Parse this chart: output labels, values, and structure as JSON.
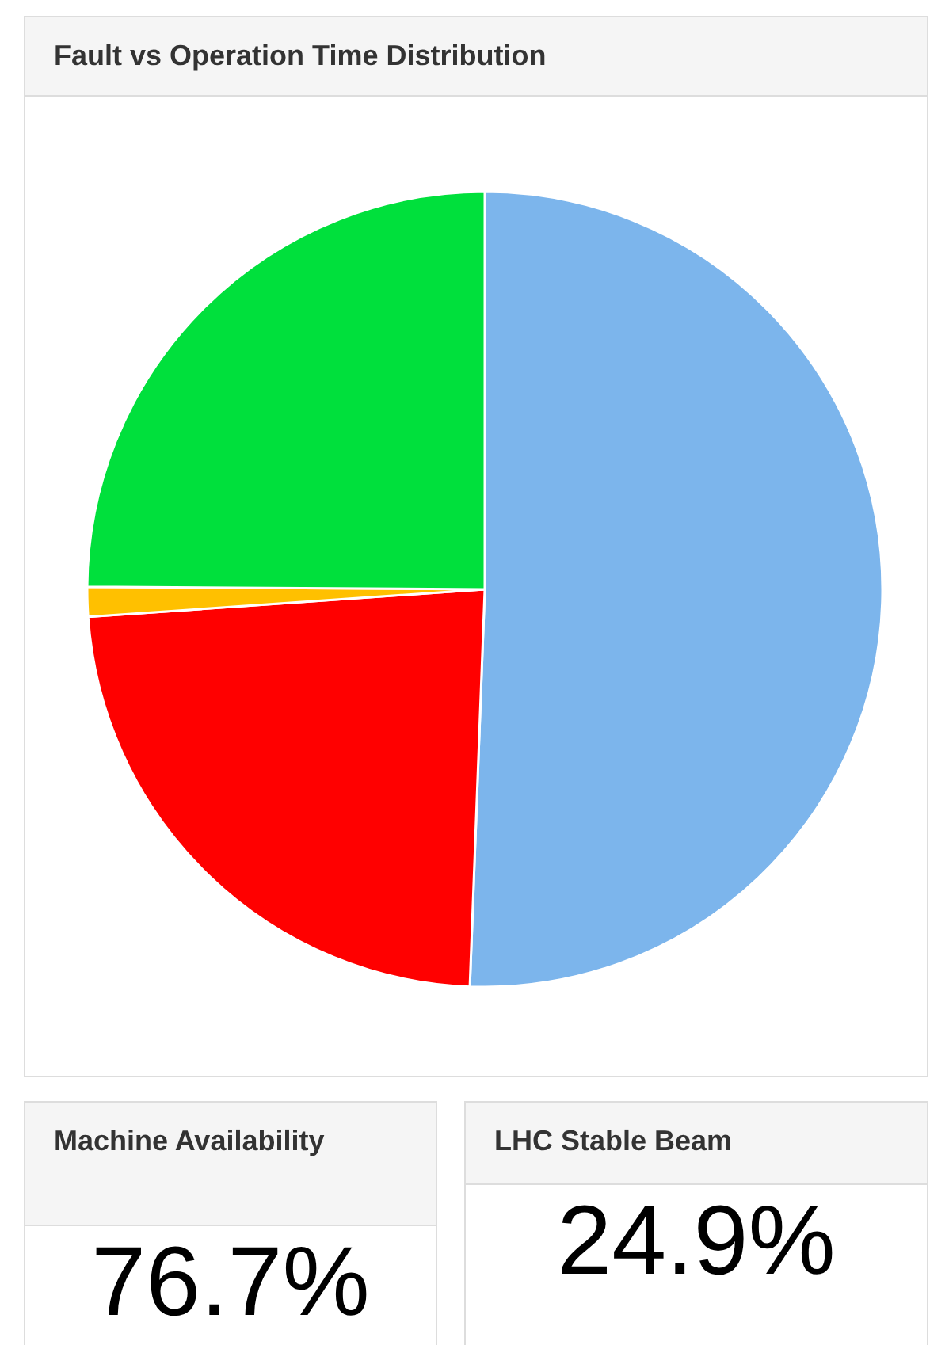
{
  "chart_data": [
    {
      "type": "pie",
      "title": "Fault vs Operation Time Distribution",
      "categories": [
        null,
        null,
        null,
        null
      ],
      "values": [
        50.6,
        23.3,
        1.2,
        24.9
      ],
      "colors": [
        "#7cb5ec",
        "#ff0000",
        "#ffc000",
        "#00e03c"
      ]
    },
    {
      "type": "other",
      "title": "Machine Availability",
      "annotations": [
        "76.7%"
      ]
    },
    {
      "type": "other",
      "title": "LHC Stable Beam",
      "annotations": [
        "24.9%"
      ]
    }
  ]
}
